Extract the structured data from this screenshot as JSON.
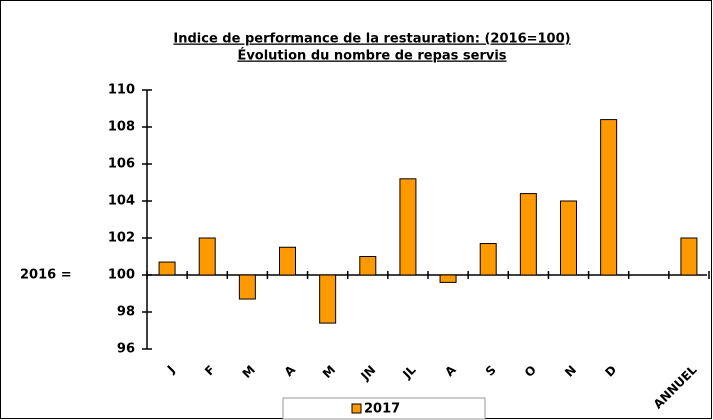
{
  "chart_data": {
    "type": "bar",
    "title": "Indice de performance de la restauration: (2016=100)",
    "subtitle": "Évolution du nombre de repas servis",
    "y_axis_label": "2016 =",
    "categories": [
      "J",
      "F",
      "M",
      "A",
      "M",
      "JN",
      "JL",
      "A",
      "S",
      "O",
      "N",
      "D",
      null,
      "ANNUEL"
    ],
    "series": [
      {
        "name": "2017",
        "color": "#ff9900",
        "values": [
          100.7,
          102,
          98.7,
          101.5,
          97.4,
          101,
          105.2,
          99.6,
          101.7,
          104.4,
          104,
          108.4,
          null,
          102
        ]
      }
    ],
    "bar_base": 100,
    "ylim": [
      96,
      110
    ],
    "yticks": [
      96,
      98,
      100,
      102,
      104,
      106,
      108,
      110
    ],
    "grid": false,
    "legend": "bottom"
  }
}
